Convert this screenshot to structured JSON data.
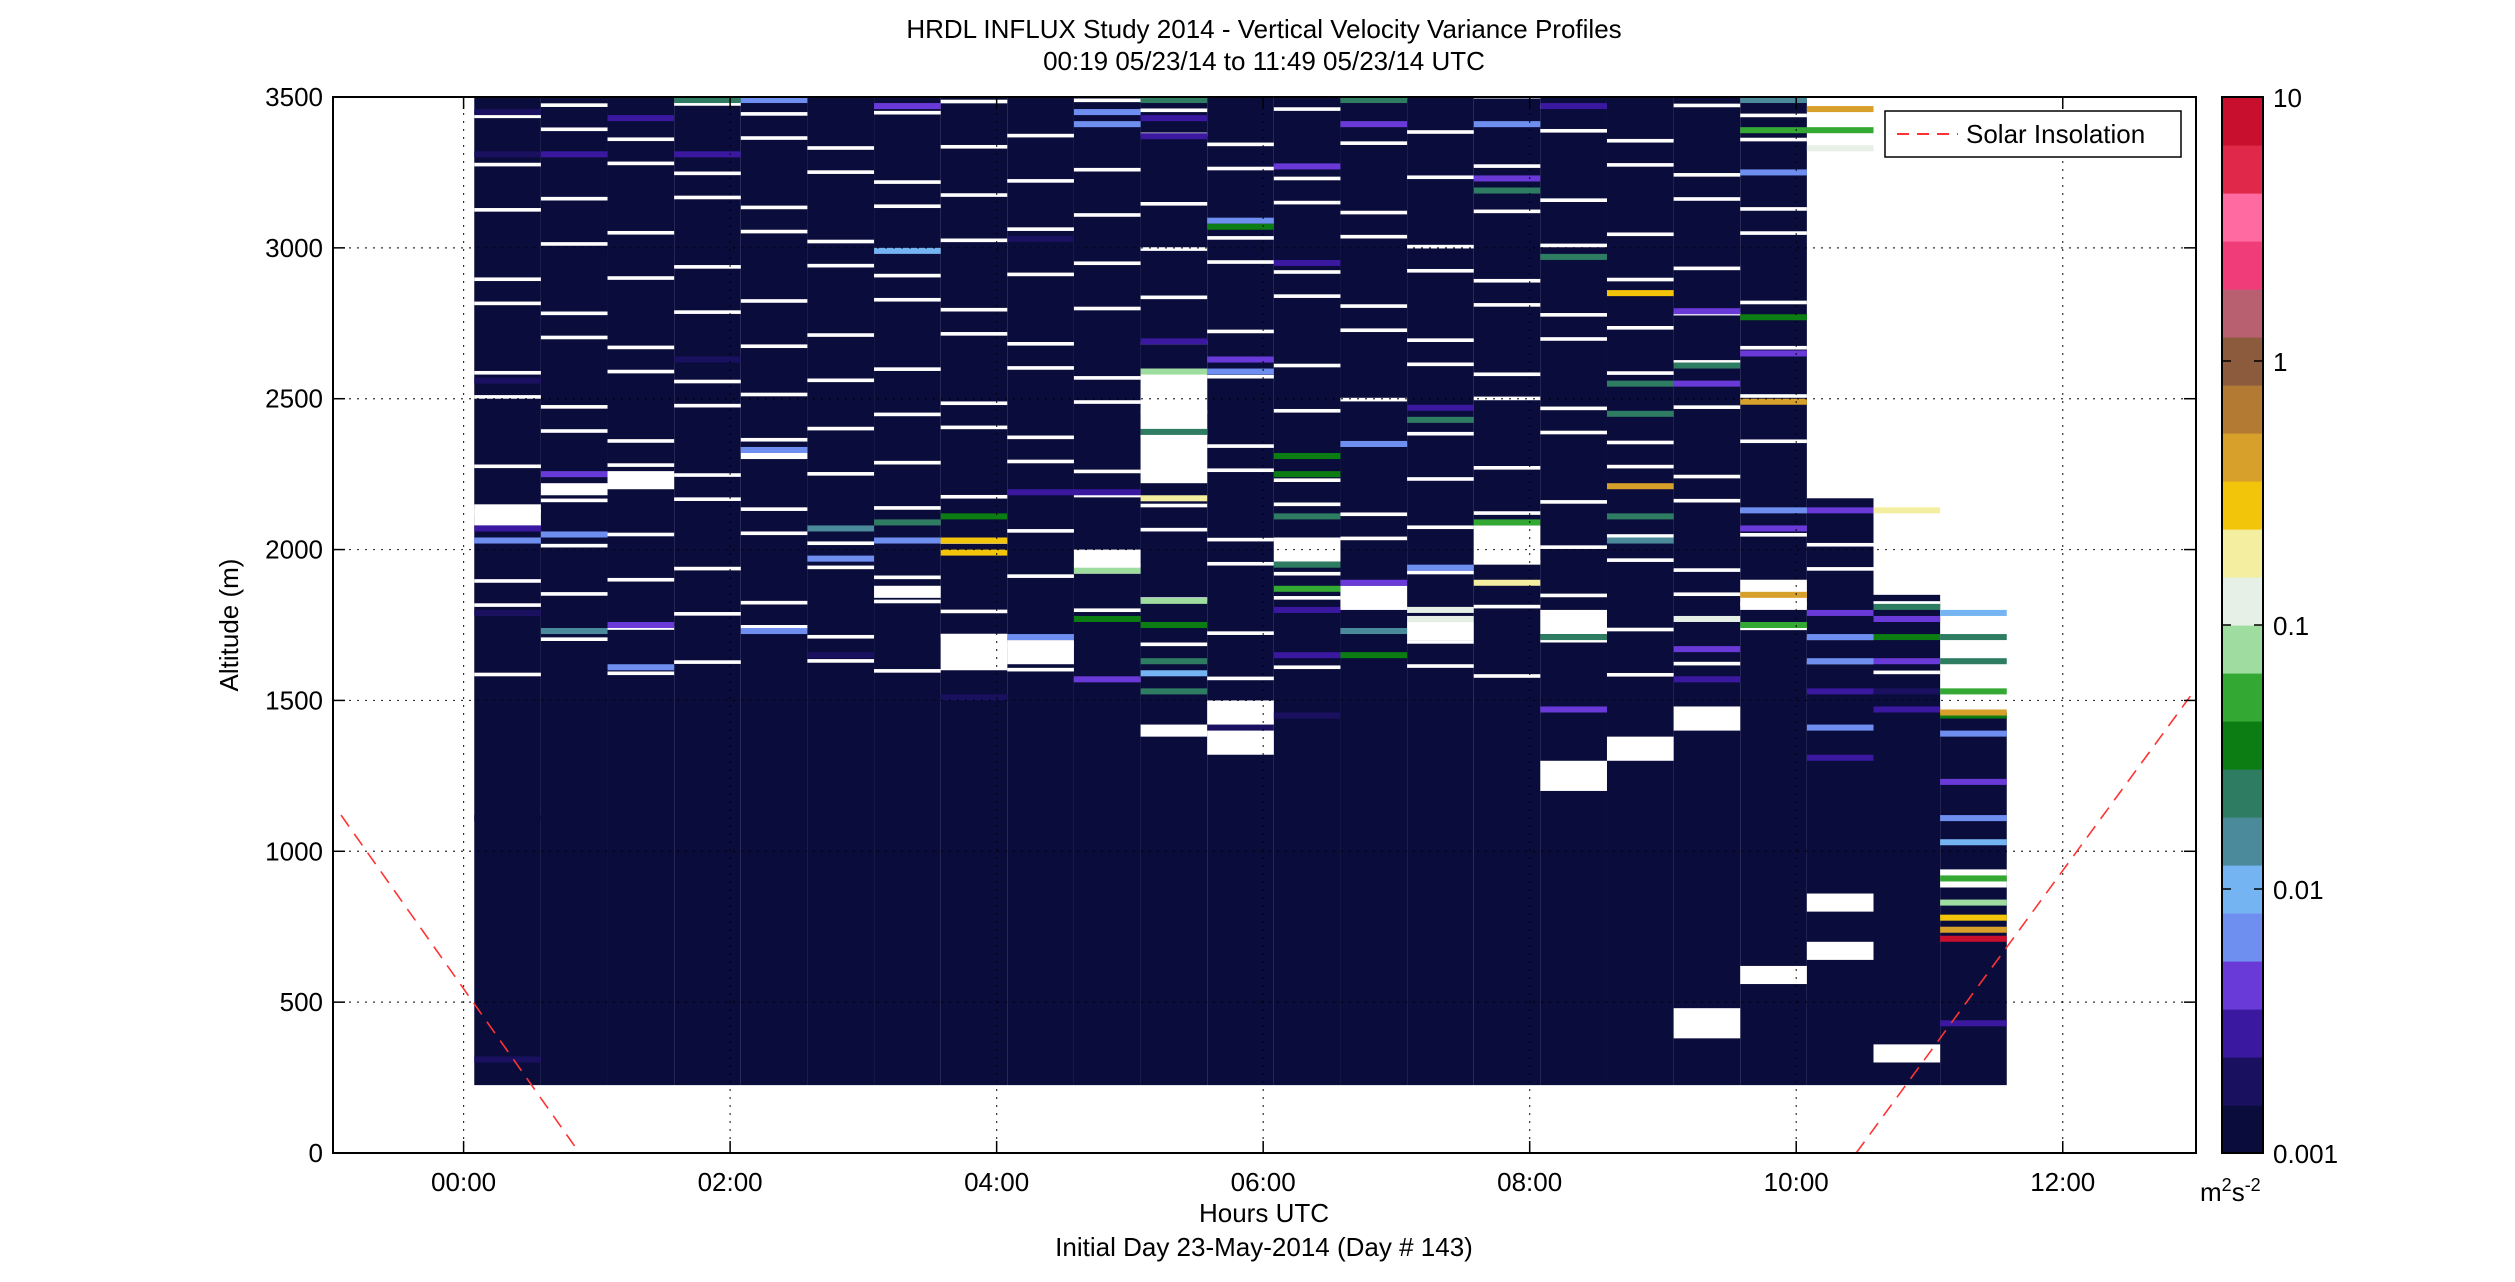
{
  "chart_data": {
    "type": "heatmap",
    "title": "HRDL INFLUX Study 2014 - Vertical Velocity Variance Profiles",
    "subtitle": "00:19 05/23/14 to 11:49 05/23/14  UTC",
    "xlabel": "Hours UTC",
    "xlabel2": "Initial Day 23-May-2014 (Day # 143)",
    "ylabel": "Altitude (m)",
    "xlim_hours": [
      -0.98,
      13.0
    ],
    "ylim": [
      0,
      3500
    ],
    "x_ticks": [
      "00:00",
      "02:00",
      "04:00",
      "06:00",
      "08:00",
      "10:00",
      "12:00"
    ],
    "x_tick_hours": [
      0,
      2,
      4,
      6,
      8,
      10,
      12
    ],
    "y_ticks": [
      "0",
      "500",
      "1000",
      "1500",
      "2000",
      "2500",
      "3000",
      "3500"
    ],
    "y_tick_values": [
      0,
      500,
      1000,
      1500,
      2000,
      2500,
      3000,
      3500
    ],
    "grid": true,
    "legend": {
      "label": "Solar Insolation",
      "placement": "top-right",
      "color": "#ff3333",
      "style": "dashed"
    },
    "colorbar": {
      "scale": "log",
      "range": [
        0.001,
        10
      ],
      "ticks": [
        "10",
        "1",
        "0.1",
        "0.01",
        "0.001"
      ],
      "tick_values": [
        10,
        1,
        0.1,
        0.01,
        0.001
      ],
      "unit": "m²s⁻²",
      "unit_base": "m",
      "unit_sup1": "2",
      "unit_mid": "s",
      "unit_sup2": "-2",
      "colors_low_to_high": [
        "#0a0c3c",
        "#1a1060",
        "#3a18a0",
        "#6a3ad8",
        "#6f8ff0",
        "#74b4f2",
        "#4a8a9a",
        "#2e7d62",
        "#0b7d12",
        "#33a833",
        "#9fdca0",
        "#e6f0e6",
        "#f4efa0",
        "#f2c40a",
        "#d7a02a",
        "#b37a33",
        "#8c5a3c",
        "#b86070",
        "#f03c78",
        "#ff6aa0",
        "#e0284a",
        "#c8102e"
      ]
    },
    "solar_insolation": {
      "x_hours": [
        -0.92,
        0.87,
        10.45,
        13.05
      ],
      "y": [
        1120,
        0,
        0,
        1570
      ]
    },
    "data_columns_hours": [
      0.33,
      0.83,
      1.33,
      1.83,
      2.33,
      2.83,
      3.33,
      3.83,
      4.33,
      4.83,
      5.33,
      5.83,
      6.33,
      6.83,
      7.33,
      7.83,
      8.33,
      8.83,
      9.33,
      9.83,
      10.33,
      10.83,
      11.33
    ],
    "column_width_hours": 0.5,
    "data_base_altitude": 225,
    "column_tops": [
      3500,
      3500,
      3500,
      3500,
      3500,
      3500,
      3500,
      3500,
      3500,
      3500,
      3500,
      3500,
      3500,
      3500,
      3500,
      3500,
      3500,
      3500,
      3500,
      3500,
      2170,
      1850,
      1460
    ],
    "gap_bands": [
      [
        0,
        2080,
        2150
      ],
      [
        1,
        2180,
        2220
      ],
      [
        2,
        2200,
        2260
      ],
      [
        4,
        2300,
        2340
      ],
      [
        6,
        1840,
        1880
      ],
      [
        7,
        1600,
        1720
      ],
      [
        8,
        1620,
        1700
      ],
      [
        9,
        1920,
        2000
      ],
      [
        10,
        1380,
        1420
      ],
      [
        10,
        2220,
        2600
      ],
      [
        11,
        1320,
        1500
      ],
      [
        12,
        1960,
        2040
      ],
      [
        13,
        1800,
        1880
      ],
      [
        14,
        1700,
        1760
      ],
      [
        15,
        1950,
        2080
      ],
      [
        16,
        1200,
        1300
      ],
      [
        16,
        1720,
        1800
      ],
      [
        17,
        1300,
        1380
      ],
      [
        18,
        1400,
        1480
      ],
      [
        19,
        1800,
        1900
      ],
      [
        18,
        380,
        480
      ],
      [
        19,
        560,
        620
      ],
      [
        20,
        640,
        700
      ],
      [
        20,
        800,
        860
      ],
      [
        21,
        300,
        360
      ],
      [
        22,
        880,
        940
      ]
    ],
    "cells": [
      [
        0,
        300,
        0.002
      ],
      [
        0,
        1100,
        0.0015
      ],
      [
        0,
        1780,
        0.002
      ],
      [
        0,
        2020,
        0.006
      ],
      [
        0,
        2060,
        0.003
      ],
      [
        0,
        2550,
        0.002
      ],
      [
        0,
        3300,
        0.002
      ],
      [
        0,
        3440,
        0.002
      ],
      [
        1,
        2040,
        0.006
      ],
      [
        1,
        3300,
        0.003
      ],
      [
        1,
        1720,
        0.015
      ],
      [
        1,
        2240,
        0.004
      ],
      [
        2,
        1600,
        0.006
      ],
      [
        2,
        3420,
        0.003
      ],
      [
        2,
        1740,
        0.005
      ],
      [
        3,
        2620,
        0.002
      ],
      [
        3,
        3480,
        0.02
      ],
      [
        3,
        3300,
        0.003
      ],
      [
        4,
        3480,
        0.006
      ],
      [
        4,
        2320,
        0.006
      ],
      [
        4,
        1720,
        0.008
      ],
      [
        5,
        1640,
        0.002
      ],
      [
        5,
        2060,
        0.015
      ],
      [
        5,
        1960,
        0.006
      ],
      [
        6,
        2020,
        0.008
      ],
      [
        6,
        2080,
        0.02
      ],
      [
        6,
        2980,
        0.012
      ],
      [
        6,
        3460,
        0.004
      ],
      [
        7,
        1980,
        0.3
      ],
      [
        7,
        2020,
        0.25
      ],
      [
        7,
        2100,
        0.03
      ],
      [
        7,
        1500,
        0.002
      ],
      [
        8,
        3020,
        0.002
      ],
      [
        8,
        1700,
        0.006
      ],
      [
        8,
        2180,
        0.003
      ],
      [
        9,
        3440,
        0.006
      ],
      [
        9,
        3400,
        0.007
      ],
      [
        9,
        2180,
        0.003
      ],
      [
        9,
        1920,
        0.07
      ],
      [
        9,
        1760,
        0.03
      ],
      [
        9,
        1560,
        0.005
      ],
      [
        10,
        3480,
        0.02
      ],
      [
        10,
        3420,
        0.003
      ],
      [
        10,
        3360,
        0.003
      ],
      [
        10,
        2680,
        0.003
      ],
      [
        10,
        2580,
        0.08
      ],
      [
        10,
        2380,
        0.02
      ],
      [
        10,
        2160,
        0.2
      ],
      [
        10,
        1820,
        0.08
      ],
      [
        10,
        1740,
        0.03
      ],
      [
        10,
        1620,
        0.02
      ],
      [
        10,
        1580,
        0.012
      ],
      [
        10,
        1520,
        0.02
      ],
      [
        11,
        3080,
        0.007
      ],
      [
        11,
        3060,
        0.03
      ],
      [
        11,
        2620,
        0.005
      ],
      [
        11,
        2580,
        0.008
      ],
      [
        11,
        1400,
        0.002
      ],
      [
        12,
        3260,
        0.005
      ],
      [
        12,
        2940,
        0.003
      ],
      [
        12,
        2300,
        0.03
      ],
      [
        12,
        2240,
        0.03
      ],
      [
        12,
        2100,
        0.02
      ],
      [
        12,
        1940,
        0.02
      ],
      [
        12,
        1860,
        0.05
      ],
      [
        12,
        1790,
        0.003
      ],
      [
        12,
        1640,
        0.003
      ],
      [
        12,
        1440,
        0.002
      ],
      [
        13,
        3480,
        0.02
      ],
      [
        13,
        3400,
        0.004
      ],
      [
        13,
        2340,
        0.006
      ],
      [
        13,
        1880,
        0.005
      ],
      [
        13,
        1720,
        0.015
      ],
      [
        13,
        1640,
        0.03
      ],
      [
        14,
        2460,
        0.003
      ],
      [
        14,
        2420,
        0.02
      ],
      [
        14,
        1930,
        0.006
      ],
      [
        14,
        1790,
        0.1
      ],
      [
        14,
        1760,
        0.12
      ],
      [
        15,
        3400,
        0.006
      ],
      [
        15,
        3220,
        0.004
      ],
      [
        15,
        3180,
        0.02
      ],
      [
        15,
        2080,
        0.05
      ],
      [
        15,
        1880,
        0.2
      ],
      [
        16,
        3460,
        0.003
      ],
      [
        16,
        2960,
        0.02
      ],
      [
        16,
        1700,
        0.02
      ],
      [
        16,
        1460,
        0.004
      ],
      [
        17,
        2840,
        0.3
      ],
      [
        17,
        2540,
        0.02
      ],
      [
        17,
        2440,
        0.02
      ],
      [
        17,
        2200,
        0.5
      ],
      [
        17,
        2100,
        0.02
      ],
      [
        17,
        2020,
        0.015
      ],
      [
        18,
        2780,
        0.004
      ],
      [
        18,
        2600,
        0.02
      ],
      [
        18,
        2540,
        0.004
      ],
      [
        18,
        1760,
        0.1
      ],
      [
        18,
        1660,
        0.004
      ],
      [
        18,
        1560,
        0.003
      ],
      [
        19,
        3480,
        0.015
      ],
      [
        19,
        3380,
        0.06
      ],
      [
        19,
        3240,
        0.008
      ],
      [
        19,
        2760,
        0.04
      ],
      [
        19,
        2640,
        0.005
      ],
      [
        19,
        2480,
        0.5
      ],
      [
        19,
        2120,
        0.008
      ],
      [
        19,
        2060,
        0.005
      ],
      [
        19,
        1840,
        0.5
      ],
      [
        19,
        1740,
        0.05
      ],
      [
        20,
        3450,
        0.4
      ],
      [
        20,
        3380,
        0.05
      ],
      [
        20,
        3320,
        0.1
      ],
      [
        20,
        2120,
        0.004
      ],
      [
        20,
        1780,
        0.005
      ],
      [
        20,
        1700,
        0.006
      ],
      [
        20,
        1620,
        0.007
      ],
      [
        20,
        1520,
        0.003
      ],
      [
        20,
        1400,
        0.008
      ],
      [
        20,
        1300,
        0.003
      ],
      [
        21,
        2120,
        0.2
      ],
      [
        21,
        1800,
        0.02
      ],
      [
        21,
        1760,
        0.005
      ],
      [
        21,
        1700,
        0.04
      ],
      [
        21,
        1620,
        0.004
      ],
      [
        21,
        1520,
        0.002
      ],
      [
        21,
        1460,
        0.003
      ],
      [
        22,
        1780,
        0.01
      ],
      [
        22,
        1700,
        0.02
      ],
      [
        22,
        1620,
        0.02
      ],
      [
        22,
        1520,
        0.05
      ],
      [
        22,
        1440,
        0.03
      ],
      [
        22,
        1380,
        0.006
      ],
      [
        22,
        1220,
        0.004
      ],
      [
        22,
        1100,
        0.007
      ],
      [
        22,
        1020,
        0.012
      ],
      [
        22,
        900,
        0.05
      ],
      [
        22,
        820,
        0.08
      ],
      [
        22,
        770,
        0.3
      ],
      [
        22,
        730,
        0.5
      ],
      [
        22,
        700,
        8
      ],
      [
        22,
        1450,
        0.5
      ],
      [
        22,
        420,
        0.003
      ]
    ]
  }
}
